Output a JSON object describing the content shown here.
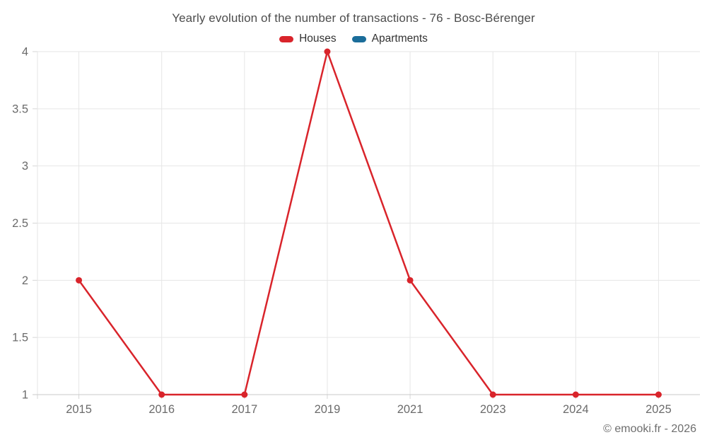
{
  "header": {
    "title": "Yearly evolution of the number of transactions - 76 - Bosc-Bérenger"
  },
  "legend": {
    "items": [
      {
        "label": "Houses",
        "color": "#d9242b"
      },
      {
        "label": "Apartments",
        "color": "#1b6d9a"
      }
    ]
  },
  "footer": {
    "text": "© emooki.fr - 2026"
  },
  "chart_data": {
    "type": "line",
    "title": "Yearly evolution of the number of transactions - 76 - Bosc-Bérenger",
    "categories": [
      "2015",
      "2016",
      "2017",
      "2019",
      "2021",
      "2023",
      "2024",
      "2025"
    ],
    "series": [
      {
        "name": "Houses",
        "color": "#d9242b",
        "values": [
          2,
          1,
          1,
          4,
          2,
          1,
          1,
          1
        ]
      },
      {
        "name": "Apartments",
        "color": "#1b6d9a",
        "values": []
      }
    ],
    "yticks": [
      1,
      1.5,
      2,
      2.5,
      3,
      3.5,
      4
    ],
    "ylim": [
      1,
      4
    ],
    "xlabel": "",
    "ylabel": "",
    "grid": true,
    "legend_position": "top",
    "marker": "circle"
  },
  "style": {
    "grid_color": "#e6e6e6",
    "axis_color": "#c9c9c9",
    "tick_color": "#d6d6d6",
    "label_color": "#6b6b6b",
    "label_font_size": 16.5
  }
}
